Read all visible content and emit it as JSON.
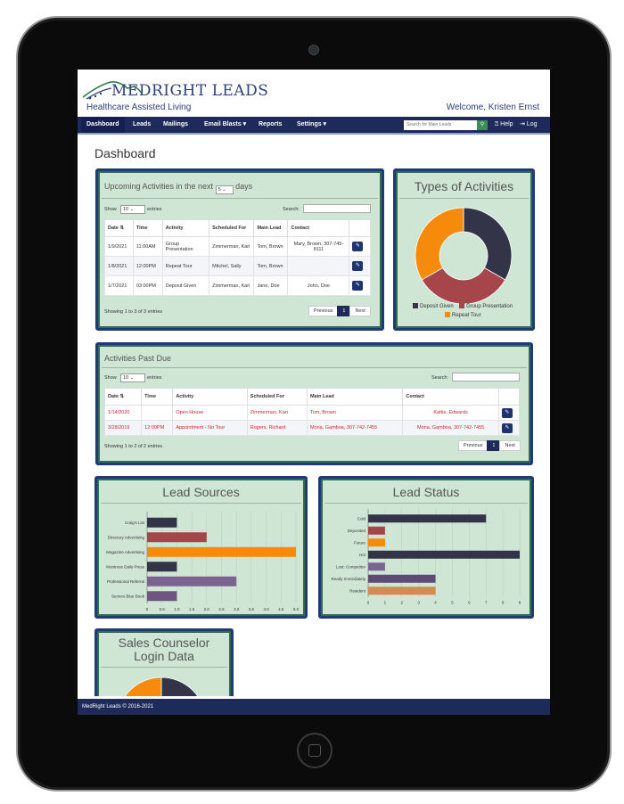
{
  "brand": {
    "name": "MEDRIGHT LEADS",
    "subtitle": "Healthcare Assisted Living"
  },
  "welcome": "Welcome, Kristen Ernst",
  "nav": {
    "items": [
      "Dashboard",
      "Leads",
      "Mailings",
      "Email Blasts ▾",
      "Reports",
      "Settings ▾"
    ],
    "search_placeholder": "Search for Main Leads",
    "help": "Help",
    "logout": "Log out"
  },
  "page_title": "Dashboard",
  "upcoming": {
    "title_prefix": "Upcoming Activities in the next",
    "days_value": "5",
    "title_suffix": "days",
    "show_label": "Show",
    "show_value": "10",
    "entries_label": "entries",
    "search_label": "Search:",
    "columns": [
      "Date",
      "Time",
      "Activity",
      "Scheduled For",
      "Main Lead",
      "Contact"
    ],
    "rows": [
      [
        "1/9/2021",
        "11:00AM",
        "Group Presentation",
        "Zimmerman, Kari",
        "Tom, Brown",
        "Mary, Brown, 307-745-8111"
      ],
      [
        "1/8/2021",
        "12:00PM",
        "Repeat Tour",
        "Mitchel, Sally",
        "Tom, Brown",
        ""
      ],
      [
        "1/7/2021",
        "03:00PM",
        "Deposit Given",
        "Zimmerman, Kari",
        "Jane, Doe",
        "John, Doe"
      ]
    ],
    "info": "Showing 1 to 3 of 3 entries",
    "prev": "Previous",
    "page": "1",
    "next": "Next"
  },
  "pastdue": {
    "title": "Activities Past Due",
    "show_label": "Show",
    "show_value": "10",
    "entries_label": "entries",
    "search_label": "Search:",
    "columns": [
      "Date",
      "Time",
      "Activity",
      "Scheduled For",
      "Main Lead",
      "Contact"
    ],
    "rows": [
      [
        "1/14/2020",
        "",
        "Open House",
        "Zimmerman, Kari",
        "Tom, Brown",
        "Kattie, Edwards"
      ],
      [
        "3/28/2019",
        "12:00PM",
        "Appointment - No Tour",
        "Rogers, Richard",
        "Mona, Gamboa, 307-742-7455",
        "Mona, Gamboa, 307-742-7455"
      ]
    ],
    "info": "Showing 1 to 2 of 2 entries",
    "prev": "Previous",
    "page": "1",
    "next": "Next"
  },
  "types_title": "Types of Activities",
  "lead_sources_title": "Lead Sources",
  "lead_status_title": "Lead Status",
  "sales_title_1": "Sales Counselor",
  "sales_title_2": "Login Data",
  "footer": "MedRight Leads © 2016-2021",
  "colors": {
    "navy": "#1e2a5a",
    "panel": "#cfe6d4",
    "red": "#d0262f",
    "orange": "#f58a0b",
    "maroon": "#a6454a",
    "dark": "#333448"
  },
  "chart_data": [
    {
      "type": "pie",
      "title": "Types of Activities",
      "categories": [
        "Deposit Given",
        "Group Presentation",
        "Repeat Tour"
      ],
      "values": [
        1,
        1,
        1
      ],
      "colors": [
        "#333448",
        "#a6454a",
        "#f58a0b"
      ],
      "legend": "bottom"
    },
    {
      "type": "bar",
      "orientation": "horizontal",
      "title": "Lead Sources",
      "categories": [
        "Craig's List",
        "Directory Advertising",
        "Magazine Advertising",
        "Montrose Daily Press",
        "Professional Referral",
        "Seniors Blue Book"
      ],
      "values": [
        1,
        2,
        5,
        1,
        3,
        1
      ],
      "colors": [
        "#333448",
        "#a6454a",
        "#f58a0b",
        "#333448",
        "#7b6490",
        "#6e5680"
      ],
      "xticks": [
        "0",
        "0.5",
        "1.0",
        "1.5",
        "2.0",
        "2.5",
        "3.0",
        "3.5",
        "4.0",
        "4.5",
        "5.0"
      ],
      "xlim": [
        0,
        5
      ]
    },
    {
      "type": "bar",
      "orientation": "horizontal",
      "title": "Lead Status",
      "categories": [
        "Cold",
        "Deposited",
        "Future",
        "Hot",
        "Lost: Competitor",
        "Ready Immediately",
        "Resident"
      ],
      "values": [
        7,
        1,
        1,
        9,
        1,
        4,
        4
      ],
      "colors": [
        "#333448",
        "#a6454a",
        "#f58a0b",
        "#333448",
        "#7b6490",
        "#5e4a72",
        "#d48a52"
      ],
      "xticks": [
        "0",
        "1",
        "2",
        "3",
        "4",
        "5",
        "6",
        "7",
        "8",
        "9"
      ],
      "xlim": [
        0,
        9
      ]
    },
    {
      "type": "pie",
      "title": "Sales Counselor Login Data",
      "values": [
        1,
        1
      ],
      "colors": [
        "#333448",
        "#f58a0b"
      ]
    }
  ]
}
